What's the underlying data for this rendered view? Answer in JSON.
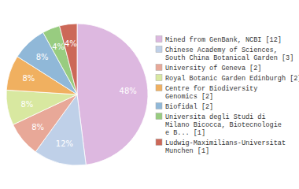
{
  "chart_data": {
    "type": "pie",
    "categories": [
      "Mined from GenBank, NCBI [12]",
      "Chinese Academy of Sciences,\nSouth China Botanical Garden [3]",
      "University of Geneva [2]",
      "Royal Botanic Garden Edinburgh [2]",
      "Centre for Biodiversity\nGenomics [2]",
      "Biofidal [2]",
      "Universita degli Studi di\nMilano Bicocca, Biotecnologie\ne B... [1]",
      "Ludwig-Maximilians-Universitat\nMunchen [1]"
    ],
    "values": [
      48,
      12,
      8,
      8,
      8,
      8,
      4,
      4
    ],
    "value_labels": [
      "48%",
      "12%",
      "8%",
      "8%",
      "8%",
      "8%",
      "4%",
      "4%"
    ],
    "colors": [
      "#ddb8e0",
      "#bfd0e8",
      "#e8a898",
      "#d8e8a0",
      "#f0b060",
      "#90b8d8",
      "#98cc80",
      "#cc6858"
    ],
    "data_labels": true,
    "legend": "right"
  }
}
